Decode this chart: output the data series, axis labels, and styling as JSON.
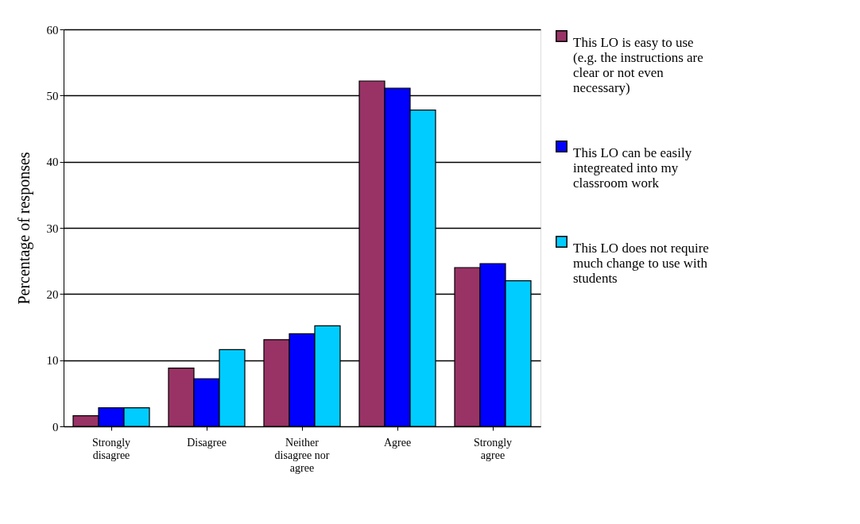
{
  "chart_data": {
    "type": "bar",
    "ylabel": "Percentage of responses",
    "categories": [
      "Strongly disagree",
      "Disagree",
      "Neither disagree nor agree",
      "Agree",
      "Strongly agree"
    ],
    "series": [
      {
        "name": "This LO is easy to use (e.g. the instructions are clear or not even necessary)",
        "color": "#993366",
        "values": [
          1.6,
          8.8,
          13.1,
          52.2,
          24.0
        ]
      },
      {
        "name": "This LO can be easily integreated into my classroom work",
        "color": "#0000ff",
        "values": [
          2.8,
          7.2,
          14.0,
          51.1,
          24.6
        ]
      },
      {
        "name": "This LO does not require much change to use with students",
        "color": "#00ccff",
        "values": [
          2.8,
          11.6,
          15.2,
          47.8,
          22.0
        ]
      }
    ],
    "ylim": [
      0,
      60
    ],
    "yticks": [
      0,
      10,
      20,
      30,
      40,
      50,
      60
    ],
    "grid": "y",
    "legend": "right"
  }
}
